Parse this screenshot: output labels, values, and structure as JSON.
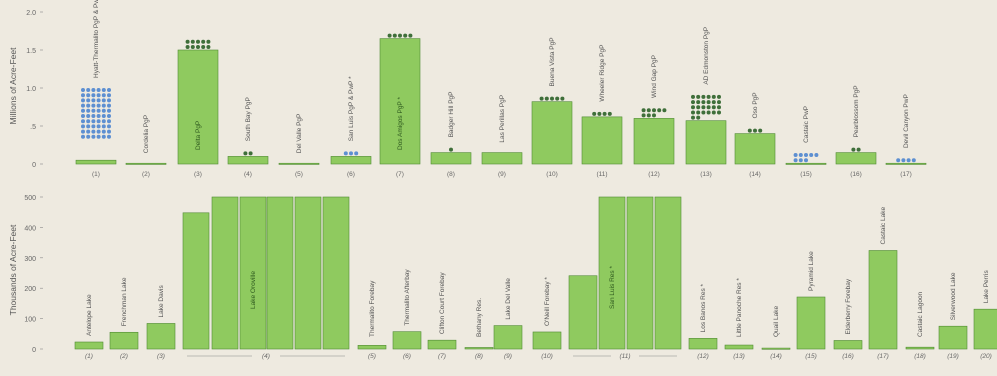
{
  "chart_data": [
    {
      "type": "bar",
      "title": "",
      "ylabel": "Millions of Acre-Feet",
      "xlabel": "",
      "ylim": [
        0,
        2.0
      ],
      "yticks": [
        0,
        0.5,
        1.0,
        1.5,
        2.0
      ],
      "ytick_labels": [
        "0",
        ".5",
        "1.0",
        "1.5",
        "2.0"
      ],
      "grid": false,
      "categories": [
        "(1)",
        "(2)",
        "(3)",
        "(4)",
        "(5)",
        "(6)",
        "(7)",
        "(8)",
        "(9)",
        "(10)",
        "(11)",
        "(12)",
        "(13)",
        "(14)",
        "(15)",
        "(16)",
        "(17)"
      ],
      "labels": [
        "Hyatt-Thermalito PgP & PwP",
        "Cordelia PgP",
        "Delta PgP",
        "South Bay PgP",
        "Del Valle PgP",
        "San Luis PgP & PwP *",
        "Dos Amigos PgP *",
        "Badger Hill PgP",
        "Las Perillas PgP",
        "Buena Vista PgP",
        "Wheeler Ridge PgP",
        "Wind Gap PgP",
        "AD Edmonston PgP",
        "Oso PgP",
        "Castaic PwP",
        "Pearblossom PgP",
        "Devil Canyon PwP"
      ],
      "values": [
        0.05,
        0.01,
        1.5,
        0.1,
        0.01,
        0.1,
        1.65,
        0.15,
        0.15,
        0.82,
        0.62,
        0.6,
        0.57,
        0.4,
        0.01,
        0.15,
        0.01
      ],
      "dots": [
        {
          "green": 0,
          "blue": 60
        },
        {
          "green": 0,
          "blue": 0
        },
        {
          "green": 10,
          "blue": 0
        },
        {
          "green": 2,
          "blue": 0
        },
        {
          "green": 0,
          "blue": 0
        },
        {
          "green": 0,
          "blue": 3
        },
        {
          "green": 5,
          "blue": 0
        },
        {
          "green": 1,
          "blue": 0
        },
        {
          "green": 0,
          "blue": 0
        },
        {
          "green": 5,
          "blue": 0
        },
        {
          "green": 4,
          "blue": 0
        },
        {
          "green": 8,
          "blue": 0
        },
        {
          "green": 26,
          "blue": 0
        },
        {
          "green": 3,
          "blue": 0
        },
        {
          "green": 0,
          "blue": 8
        },
        {
          "green": 2,
          "blue": 0
        },
        {
          "green": 0,
          "blue": 4
        }
      ],
      "colors": {
        "bar": "#8fca5f",
        "bar_edge": "#4f8a32",
        "dot_green": "#3f6f3a",
        "dot_blue": "#5d8fd1"
      }
    },
    {
      "type": "bar",
      "title": "",
      "ylabel": "Thousands of Acre-Feet",
      "xlabel": "",
      "ylim": [
        0,
        500
      ],
      "yticks": [
        0,
        100,
        200,
        300,
        400,
        500
      ],
      "ytick_labels": [
        "0",
        "100",
        "200",
        "300",
        "400",
        "500"
      ],
      "grid": false,
      "categories": [
        "(1)",
        "(2)",
        "(3)",
        "(4)",
        "(5)",
        "(6)",
        "(7)",
        "(8)",
        "(9)",
        "(10)",
        "(11)",
        "(12)",
        "(13)",
        "(14)",
        "(15)",
        "(16)",
        "(17)",
        "(18)",
        "(19)",
        "(20)"
      ],
      "bars": [
        {
          "group": 0,
          "label": "Antelope Lake",
          "value": 23
        },
        {
          "group": 1,
          "label": "Frenchman Lake",
          "value": 55
        },
        {
          "group": 2,
          "label": "Lake Davis",
          "value": 84
        },
        {
          "group": 3,
          "label": "",
          "value": 448
        },
        {
          "group": 3,
          "label": "",
          "value": 500
        },
        {
          "group": 3,
          "label": "Lake Oroville",
          "value": 500
        },
        {
          "group": 3,
          "label": "",
          "value": 500
        },
        {
          "group": 3,
          "label": "",
          "value": 500
        },
        {
          "group": 3,
          "label": "",
          "value": 500
        },
        {
          "group": 4,
          "label": "Thermalito Forebay",
          "value": 12
        },
        {
          "group": 5,
          "label": "Thermalito Afterbay",
          "value": 57
        },
        {
          "group": 6,
          "label": "Clifton Court Forebay",
          "value": 29
        },
        {
          "group": 7,
          "label": "Bethany Res.",
          "value": 5
        },
        {
          "group": 8,
          "label": "Lake Del Valle",
          "value": 77
        },
        {
          "group": 9,
          "label": "O'Neill Forebay *",
          "value": 56
        },
        {
          "group": 10,
          "label": "",
          "value": 241
        },
        {
          "group": 10,
          "label": "San Luis Res *",
          "value": 500
        },
        {
          "group": 10,
          "label": "",
          "value": 500
        },
        {
          "group": 10,
          "label": "",
          "value": 500
        },
        {
          "group": 11,
          "label": "Los Banos Res *",
          "value": 35
        },
        {
          "group": 12,
          "label": "Little Panoche Res *",
          "value": 13
        },
        {
          "group": 13,
          "label": "Quail Lake",
          "value": 3
        },
        {
          "group": 14,
          "label": "Pyramid Lake",
          "value": 171
        },
        {
          "group": 15,
          "label": "Elderberry Forebay",
          "value": 28
        },
        {
          "group": 16,
          "label": "Castaic Lake",
          "value": 324
        },
        {
          "group": 17,
          "label": "Castaic Lagoon",
          "value": 6
        },
        {
          "group": 18,
          "label": "Silverwood Lake",
          "value": 75
        },
        {
          "group": 19,
          "label": "Lake Perris",
          "value": 131
        }
      ],
      "colors": {
        "bar": "#8fca5f",
        "bar_edge": "#4f8a32"
      }
    }
  ]
}
